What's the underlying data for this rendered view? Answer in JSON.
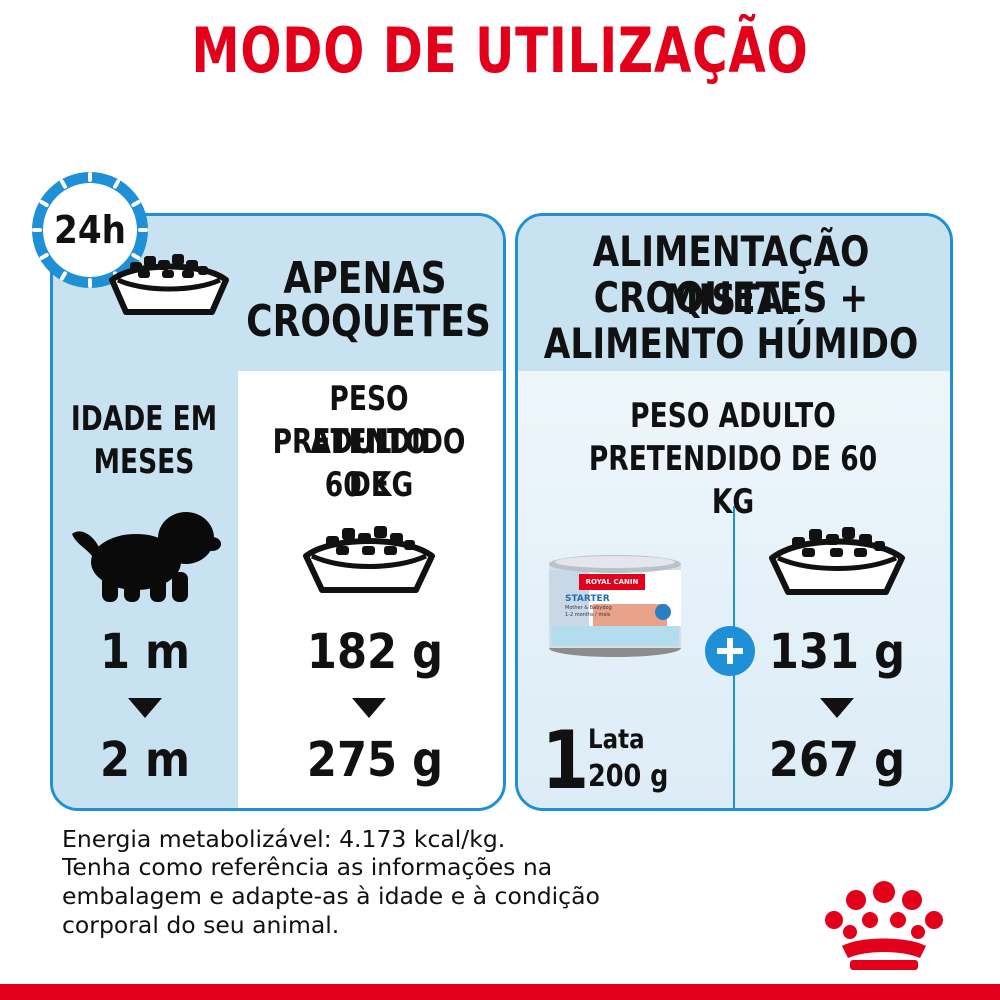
{
  "title": "MODO DE UTILIZAÇÃO",
  "clock_badge": {
    "label": "24h",
    "icon": "clock-icon"
  },
  "left_panel": {
    "headline_line1": "APENAS",
    "headline_line2": "CROQUETES",
    "age_label_line1": "IDADE EM",
    "age_label_line2": "MESES",
    "weight_label_line1": "PESO ADULTO",
    "weight_label_line2": "PRETENDIDO DE",
    "weight_label_line3": "60 KG",
    "age_from": "1 m",
    "age_to": "2 m",
    "kibble_from": "182 g",
    "kibble_to": "275 g"
  },
  "right_panel": {
    "headline_line1": "ALIMENTAÇÃO MISTA:",
    "headline_line2": "CROQUETES +",
    "headline_line3": "ALIMENTO HÚMIDO",
    "weight_label_line1": "PESO ADULTO",
    "weight_label_line2": "PRETENDIDO DE 60 KG",
    "can_count": "1",
    "can_unit": "Lata",
    "can_weight": "200 g",
    "kibble_from": "131 g",
    "kibble_to": "267 g",
    "can_label_brand": "ROYAL CANIN",
    "can_label_product": "STARTER",
    "can_label_sub": "Mother & Babydog",
    "can_label_age": "1-2 months / mois"
  },
  "footer": {
    "line1": "Energia metabolizável: 4.173 kcal/kg.",
    "line2": "Tenha como referência as informações na",
    "line3": "embalagem e adapte-as à idade e à condição",
    "line4": "corporal do seu animal."
  },
  "colors": {
    "brand_red": "#e2001a",
    "panel_blue": "#1f8fd6",
    "panel_light": "#c8e2f1"
  }
}
